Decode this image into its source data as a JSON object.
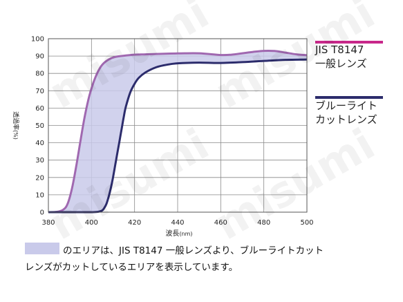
{
  "chart_data": {
    "type": "line",
    "title": "",
    "xlabel": "波長",
    "xunit": "(nm)",
    "ylabel": "透過率",
    "yunit": "(%)",
    "xlim": [
      380,
      500
    ],
    "ylim": [
      0,
      100
    ],
    "xticks": [
      380,
      400,
      420,
      440,
      460,
      480,
      500
    ],
    "yticks": [
      0,
      10,
      20,
      30,
      40,
      50,
      60,
      70,
      80,
      90,
      100
    ],
    "grid": true,
    "legend_position": "right",
    "series": [
      {
        "name": "JIS T8147 一般レンズ",
        "color": "#a068b0",
        "x": [
          380,
          384,
          387,
          389,
          391,
          393,
          395,
          397,
          399,
          401,
          403,
          405,
          408,
          411,
          415,
          420,
          425,
          430,
          440,
          450,
          460,
          465,
          470,
          475,
          480,
          485,
          490,
          495,
          500
        ],
        "y": [
          0,
          0.2,
          1.5,
          5,
          14,
          27,
          42,
          56,
          67,
          75,
          81,
          85,
          88,
          89.5,
          90.2,
          90.8,
          91,
          91.2,
          91.5,
          91.6,
          90.6,
          90.8,
          91.6,
          92.4,
          93,
          92.9,
          92,
          91,
          90.5
        ]
      },
      {
        "name": "ブルーライトカットレンズ",
        "color": "#2c2c6c",
        "x": [
          380,
          395,
          400,
          403,
          405,
          406,
          407,
          408,
          409,
          410,
          411,
          412,
          413,
          414,
          415,
          416,
          418,
          420,
          422,
          425,
          430,
          435,
          440,
          450,
          460,
          470,
          480,
          490,
          500
        ],
        "y": [
          0,
          0,
          0,
          0.2,
          1,
          2.5,
          5,
          9,
          14,
          20,
          27,
          34,
          41,
          48,
          55,
          61,
          69,
          74,
          77.5,
          80.5,
          83.5,
          85,
          85.8,
          86.2,
          86,
          86.5,
          87.2,
          87.8,
          88
        ]
      }
    ]
  },
  "colors": {
    "band_fill": "#c9caea",
    "band_fill_opacity": 0.85,
    "grid": "#888888",
    "axis": "#555555",
    "legend_general": "#c8288a",
    "legend_bluecut": "#2c2c6c"
  },
  "legend": {
    "general_label": "JIS T8147\n一般レンズ",
    "bluecut_label": "ブルーライト\nカットレンズ"
  },
  "note": {
    "line1": "のエリアは、JIS T8147 一般レンズより、ブルーライトカット",
    "line2": "レンズがカットしているエリアを表示しています。"
  },
  "watermark": "misumi"
}
